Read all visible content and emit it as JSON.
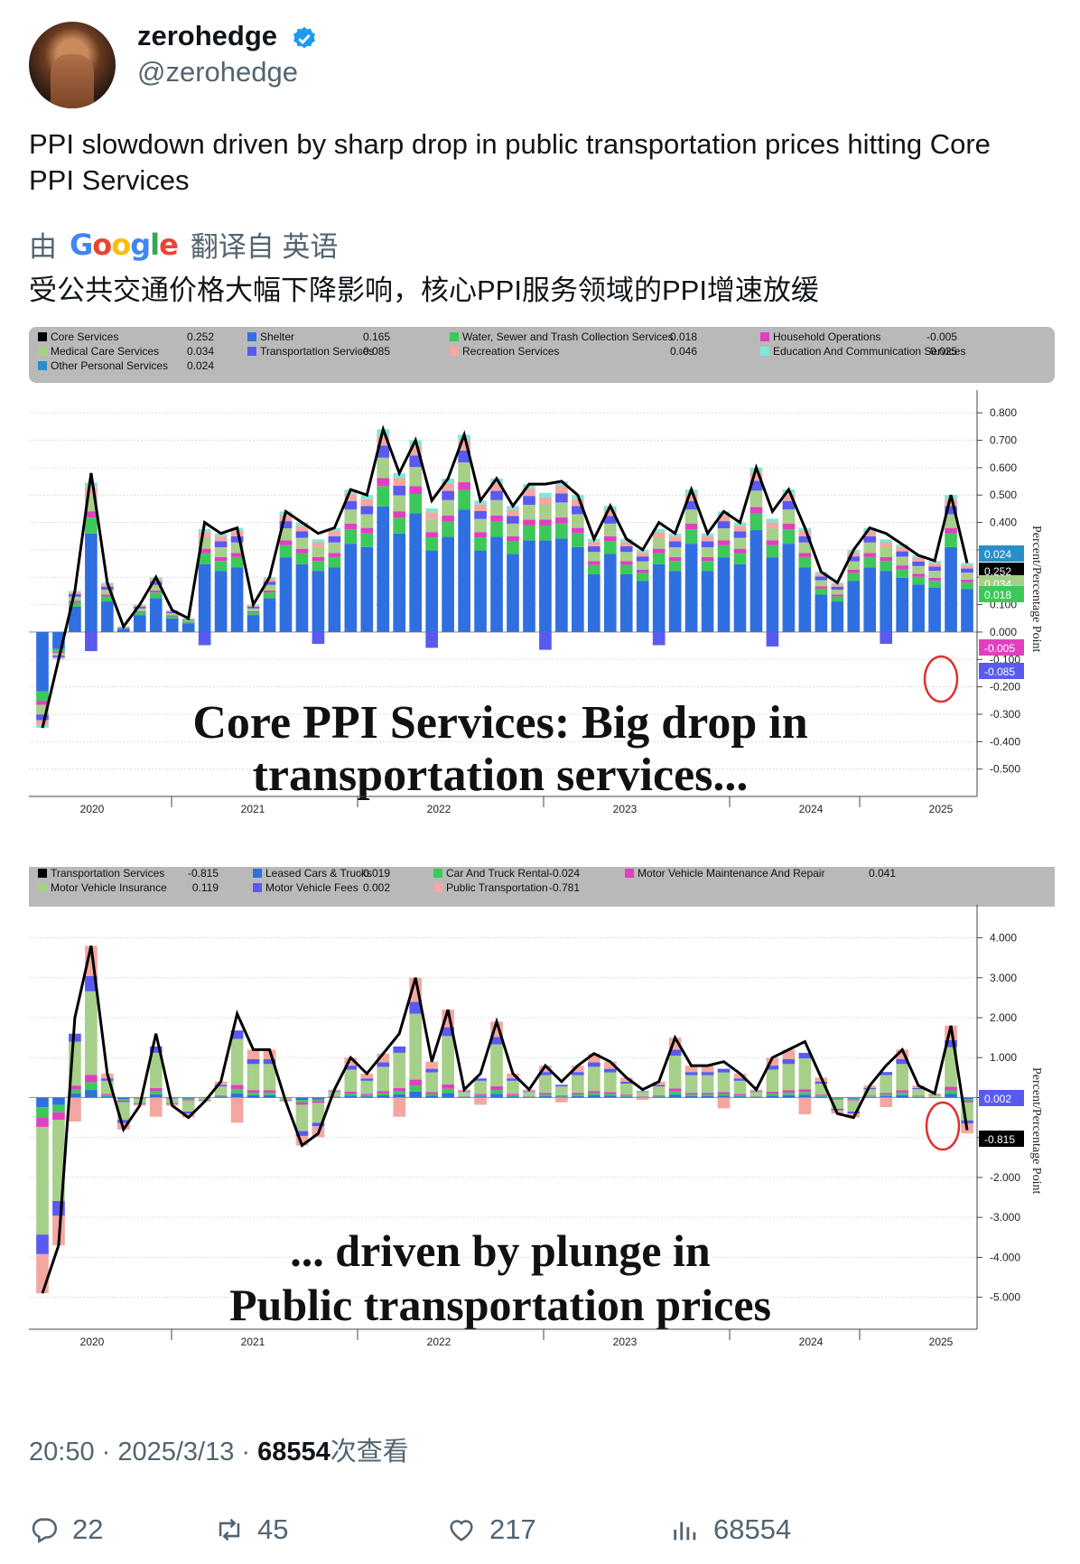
{
  "author": {
    "name": "zerohedge",
    "handle": "@zerohedge"
  },
  "tweet": {
    "text": "PPI slowdown driven by sharp drop in public transportation prices hitting Core PPI Services",
    "translated_prefix": "由",
    "google_label": "Google",
    "translated_suffix": "翻译自 英语",
    "translation": "受公共交通价格大幅下降影响，核心PPI服务领域的PPI增速放缓"
  },
  "meta": {
    "time": "20:50 · 2025/3/13 · ",
    "views": "68554",
    "views_suffix": "次查看"
  },
  "actions": {
    "replies": "22",
    "retweets": "45",
    "likes": "217",
    "views": "68554"
  },
  "chart_data": [
    {
      "type": "bar",
      "title": "Core PPI Services: Big drop in transportation services...",
      "title_line1": "Core PPI Services: Big drop in",
      "title_line2": "transportation services...",
      "ylabel": "Percent/Percentage Point",
      "ylim": [
        -0.6,
        0.85
      ],
      "yticks": [
        "0.800",
        "0.700",
        "0.600",
        "0.500",
        "0.400",
        "0.300",
        "0.200",
        "0.100",
        "0.000",
        "-0.100",
        "-0.200",
        "-0.300",
        "-0.400",
        "-0.500"
      ],
      "years": [
        "2020",
        "2021",
        "2022",
        "2023",
        "2024",
        "2025"
      ],
      "legend": [
        {
          "label": "Core Services",
          "value": "0.252",
          "color": "#000000"
        },
        {
          "label": "Shelter",
          "value": "0.165",
          "color": "#2f6fe0"
        },
        {
          "label": "Water, Sewer and Trash Collection Services",
          "value": "0.018",
          "color": "#3cc95a"
        },
        {
          "label": "Household Operations",
          "value": "-0.005",
          "color": "#e040c0"
        },
        {
          "label": "Medical Care Services",
          "value": "0.034",
          "color": "#a6d08a"
        },
        {
          "label": "Transportation Services",
          "value": "-0.085",
          "color": "#5a5af0"
        },
        {
          "label": "Recreation Services",
          "value": "0.046",
          "color": "#f4a7a0"
        },
        {
          "label": "Education And Communication Services",
          "value": "0.025",
          "color": "#7ee8d8"
        },
        {
          "label": "Other Personal Services",
          "value": "0.024",
          "color": "#2a8fc8"
        }
      ],
      "line_series": [
        -0.35,
        -0.1,
        0.15,
        0.58,
        0.18,
        0.02,
        0.1,
        0.2,
        0.08,
        0.05,
        0.4,
        0.36,
        0.38,
        0.1,
        0.2,
        0.44,
        0.4,
        0.36,
        0.38,
        0.52,
        0.5,
        0.74,
        0.58,
        0.7,
        0.48,
        0.56,
        0.72,
        0.48,
        0.56,
        0.46,
        0.54,
        0.54,
        0.55,
        0.5,
        0.34,
        0.46,
        0.34,
        0.3,
        0.4,
        0.36,
        0.52,
        0.36,
        0.44,
        0.4,
        0.6,
        0.44,
        0.52,
        0.38,
        0.22,
        0.18,
        0.3,
        0.38,
        0.36,
        0.32,
        0.28,
        0.26,
        0.5,
        0.252
      ],
      "end_labels": [
        "0.024",
        "0.252",
        "0.034",
        "0.018",
        "-0.005",
        "-0.085"
      ]
    },
    {
      "type": "bar",
      "title": "... driven by plunge in Public transportation prices",
      "title_line1": "... driven by plunge in",
      "title_line2": "Public transportation prices",
      "ylabel": "Percent/Percentage Point",
      "ylim": [
        -5.8,
        4.6
      ],
      "yticks": [
        "4.000",
        "3.000",
        "2.000",
        "1.000",
        "0.000",
        "-1.000",
        "-2.000",
        "-3.000",
        "-4.000",
        "-5.000"
      ],
      "years": [
        "2020",
        "2021",
        "2022",
        "2023",
        "2024",
        "2025"
      ],
      "legend": [
        {
          "label": "Transportation Services",
          "value": "-0.815",
          "color": "#000000"
        },
        {
          "label": "Leased Cars & Trucks",
          "value": "-0.019",
          "color": "#2f6fe0"
        },
        {
          "label": "Car And Truck Rental",
          "value": "-0.024",
          "color": "#3cc95a"
        },
        {
          "label": "Motor Vehicle Maintenance And Repair",
          "value": "0.041",
          "color": "#e040c0"
        },
        {
          "label": "Motor Vehicle Insurance",
          "value": "0.119",
          "color": "#a6d08a"
        },
        {
          "label": "Motor Vehicle Fees",
          "value": "0.002",
          "color": "#5a5af0"
        },
        {
          "label": "Public Transportation",
          "value": "-0.781",
          "color": "#f4a7a0"
        }
      ],
      "line_series": [
        -4.9,
        -3.7,
        2.0,
        3.8,
        0.6,
        -0.8,
        -0.2,
        1.6,
        -0.2,
        -0.5,
        -0.1,
        0.4,
        2.1,
        1.2,
        1.2,
        -0.1,
        -1.2,
        -0.9,
        0.2,
        1.0,
        0.6,
        1.1,
        1.6,
        3.0,
        0.9,
        2.2,
        0.2,
        0.6,
        1.9,
        0.6,
        0.2,
        0.8,
        0.4,
        0.8,
        1.1,
        0.9,
        0.5,
        0.2,
        0.4,
        1.5,
        0.8,
        0.8,
        0.9,
        0.6,
        0.2,
        1.0,
        1.2,
        1.4,
        0.5,
        -0.4,
        -0.5,
        0.3,
        0.8,
        1.2,
        0.3,
        0.1,
        1.8,
        -0.815
      ],
      "end_labels": [
        "0.002",
        "-0.815"
      ]
    }
  ]
}
